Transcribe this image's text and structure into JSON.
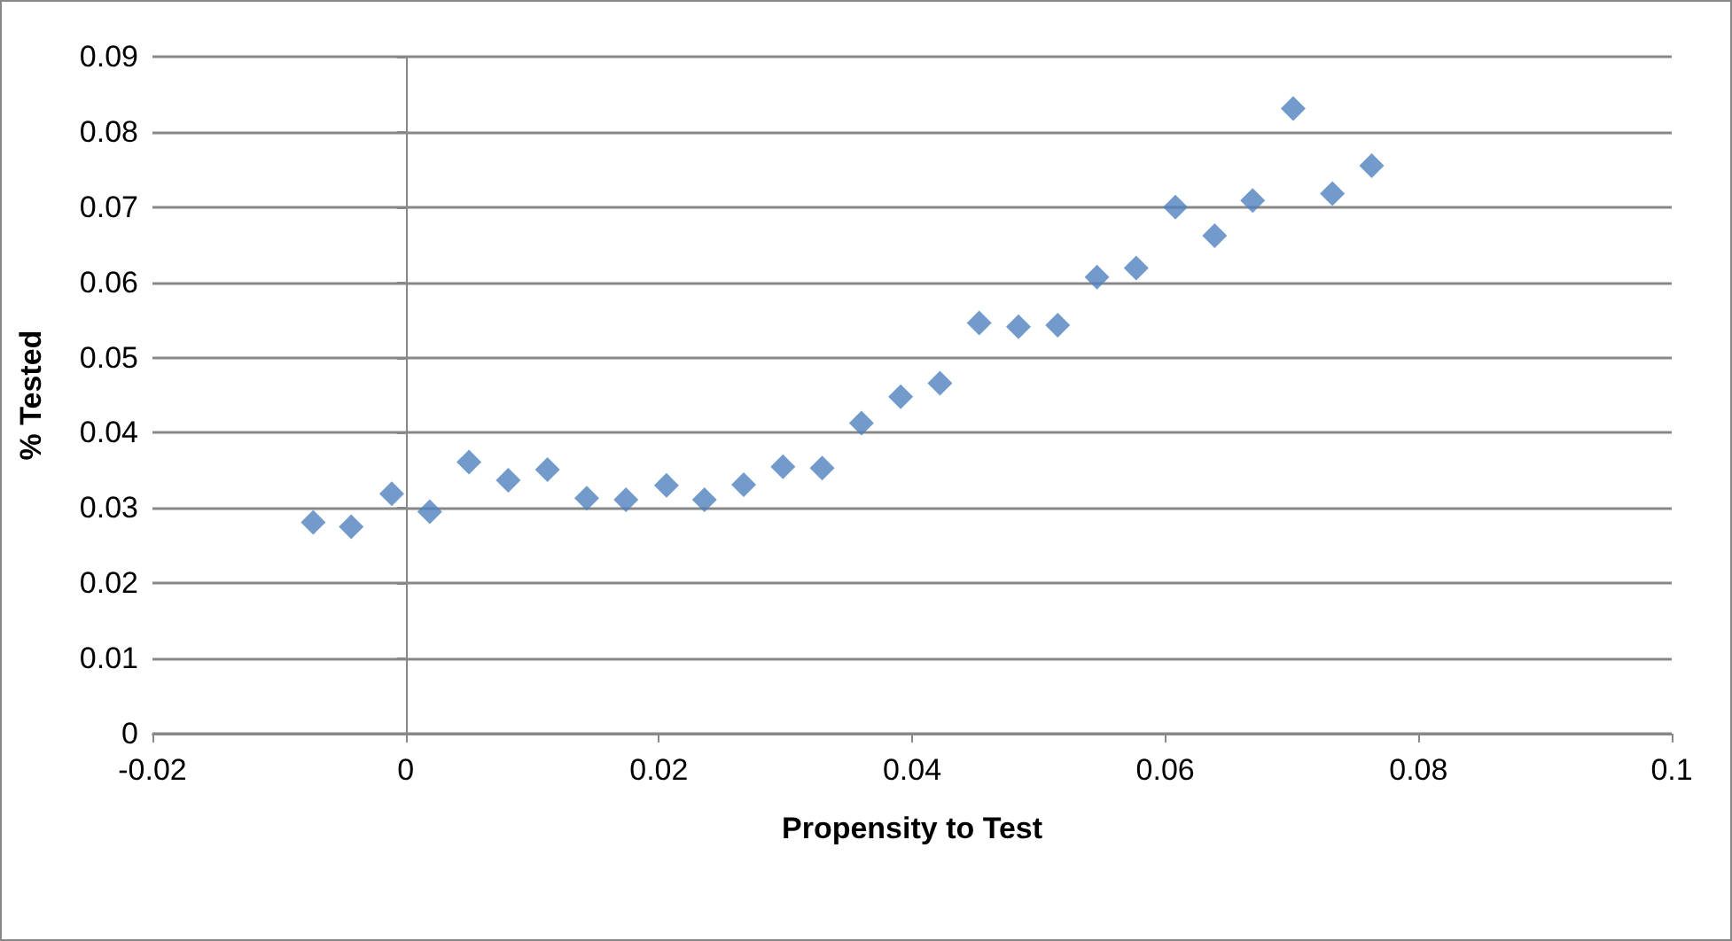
{
  "chart_data": {
    "type": "scatter",
    "xlabel": "Propensity to Test",
    "ylabel": "% Tested",
    "x": [
      -0.0073,
      -0.0043,
      -0.0011,
      0.0019,
      0.005,
      0.0081,
      0.0112,
      0.0143,
      0.0174,
      0.0206,
      0.0236,
      0.0267,
      0.0298,
      0.0329,
      0.036,
      0.0391,
      0.0422,
      0.0453,
      0.0484,
      0.0515,
      0.0546,
      0.0577,
      0.0608,
      0.0639,
      0.0669,
      0.0701,
      0.0732,
      0.0763
    ],
    "series": [
      {
        "color": "#4f81bd",
        "values": [
          0.0281,
          0.0275,
          0.0319,
          0.0295,
          0.0361,
          0.0337,
          0.0351,
          0.0313,
          0.0311,
          0.033,
          0.0311,
          0.0331,
          0.0355,
          0.0353,
          0.0413,
          0.0448,
          0.0466,
          0.0546,
          0.0541,
          0.0543,
          0.0607,
          0.0619,
          0.07,
          0.0662,
          0.0709,
          0.0831,
          0.0718,
          0.0755
        ]
      }
    ],
    "xlim": [
      -0.02,
      0.1
    ],
    "xticks": [
      -0.02,
      0,
      0.02,
      0.04,
      0.06,
      0.08,
      0.1
    ],
    "ylim": [
      0,
      0.09
    ],
    "yticks": [
      0,
      0.01,
      0.02,
      0.03,
      0.04,
      0.05,
      0.06,
      0.07,
      0.08,
      0.09
    ],
    "grid": "y",
    "marker": "diamond"
  }
}
